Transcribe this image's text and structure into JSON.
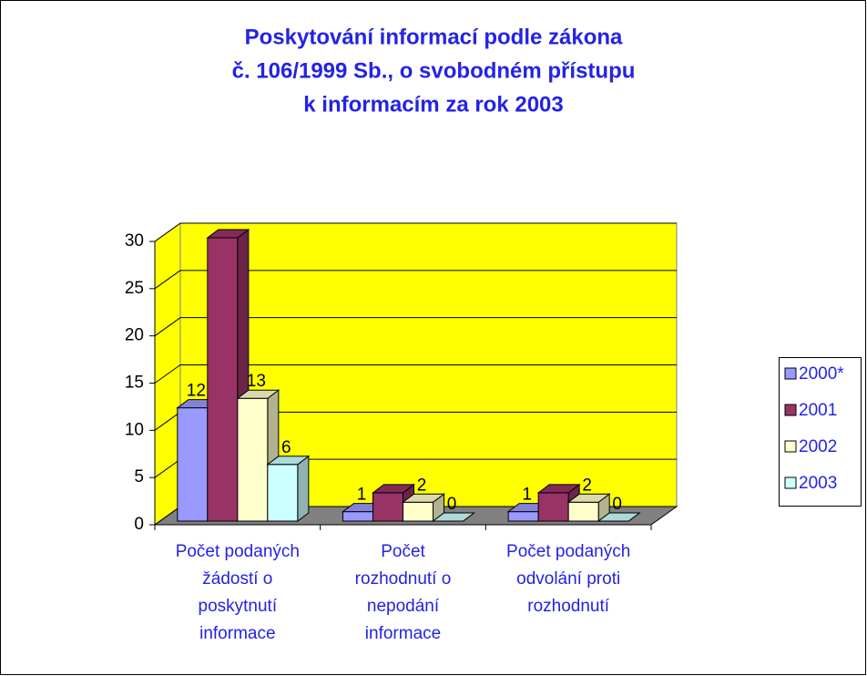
{
  "chart_data": {
    "type": "bar3d",
    "title": [
      "Poskytování informací podle zákona",
      "č. 106/1999 Sb., o svobodném přístupu",
      "k informacím za rok 2003"
    ],
    "categories": [
      [
        "Počet podaných",
        "žádostí o",
        "poskytnutí",
        "informace"
      ],
      [
        "Počet",
        "rozhodnutí o",
        "nepodání",
        "informace"
      ],
      [
        "Počet podaných",
        "odvolání proti",
        "rozhodnutí"
      ]
    ],
    "series": [
      {
        "name": "2000*",
        "color": "#9999ff",
        "values": [
          12,
          1,
          1
        ],
        "data_labels": true
      },
      {
        "name": "2001",
        "color": "#993366",
        "values": [
          30,
          3,
          3
        ],
        "data_labels": false
      },
      {
        "name": "2002",
        "color": "#ffffcc",
        "values": [
          13,
          2,
          2
        ],
        "data_labels": true
      },
      {
        "name": "2003",
        "color": "#ccffff",
        "values": [
          6,
          0,
          0
        ],
        "data_labels": true
      }
    ],
    "ylim": [
      0,
      30
    ],
    "yticks": [
      0,
      5,
      10,
      15,
      20,
      25,
      30
    ],
    "grid": true,
    "wall_color": "#ffff00",
    "floor_color": "#808080",
    "legend": "right"
  }
}
